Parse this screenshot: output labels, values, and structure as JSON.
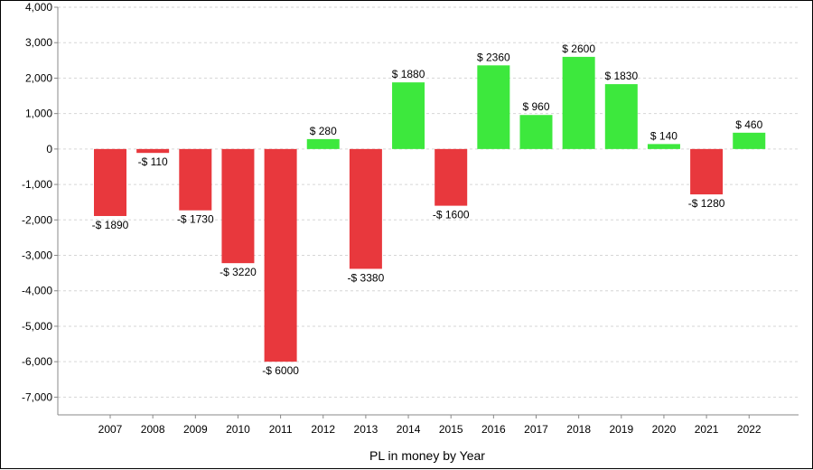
{
  "chart_data": {
    "type": "bar",
    "title": "",
    "xlabel": "PL in money by Year",
    "ylabel": "",
    "categories": [
      "2007",
      "2008",
      "2009",
      "2010",
      "2011",
      "2012",
      "2013",
      "2014",
      "2015",
      "2016",
      "2017",
      "2018",
      "2019",
      "2020",
      "2021",
      "2022"
    ],
    "values": [
      -1890,
      -110,
      -1730,
      -3220,
      -6000,
      280,
      -3380,
      1880,
      -1600,
      2360,
      960,
      2600,
      1830,
      140,
      -1280,
      460
    ],
    "data_labels": [
      "-$ 1890",
      "-$ 110",
      "-$ 1730",
      "-$ 3220",
      "-$ 6000",
      "$ 280",
      "-$ 3380",
      "$ 1880",
      "-$ 1600",
      "$ 2360",
      "$ 960",
      "$ 2600",
      "$ 1830",
      "$ 140",
      "-$ 1280",
      "$ 460"
    ],
    "ylim": [
      -7500,
      4000
    ],
    "y_ticks": [
      4000,
      3000,
      2000,
      1000,
      0,
      -1000,
      -2000,
      -3000,
      -4000,
      -5000,
      -6000,
      -7000
    ],
    "y_tick_labels": [
      "4,000",
      "3,000",
      "2,000",
      "1,000",
      "0",
      "-1,000",
      "-2,000",
      "-3,000",
      "-4,000",
      "-5,000",
      "-6,000",
      "-7,000"
    ],
    "grid": true,
    "grid_style": "dashed-horizontal",
    "legend": "none",
    "colors": {
      "positive": "#3de83d",
      "negative": "#e8383d",
      "grid": "#d6d6d6",
      "axis": "#888888"
    }
  }
}
